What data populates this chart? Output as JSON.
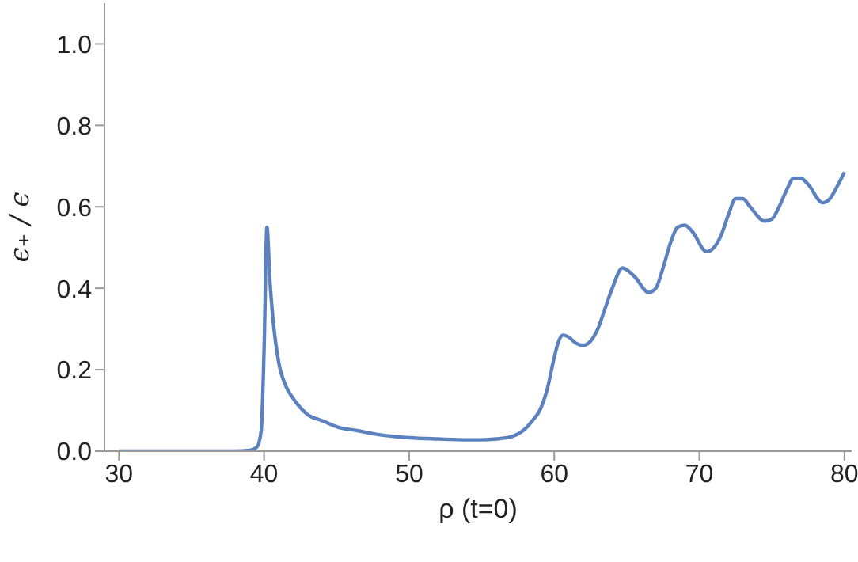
{
  "chart_data": {
    "type": "line",
    "xlabel": "ρ (t=0)",
    "ylabel": "ϵ₊ / ϵ",
    "xlim": [
      29,
      80.5
    ],
    "ylim": [
      0,
      1.1
    ],
    "xticks": [
      30,
      40,
      50,
      60,
      70,
      80
    ],
    "yticks": [
      {
        "value": 0,
        "label": "0.0"
      },
      0.2,
      0.4,
      0.6,
      0.8,
      {
        "value": 1,
        "label": "1.0"
      }
    ],
    "grid": false,
    "legend": false,
    "marker": "none",
    "line_style": "solid",
    "series": [
      {
        "color": "#5b81bf",
        "x": [
          30,
          32,
          34,
          36,
          38,
          39,
          39.5,
          39.8,
          40,
          40.2,
          40.4,
          40.6,
          41,
          41.5,
          42,
          43,
          44,
          45,
          46.5,
          48,
          50,
          52,
          54,
          55,
          56,
          57,
          58,
          58.5,
          59,
          59.5,
          60,
          60.3,
          60.6,
          61,
          61.5,
          62,
          62.5,
          63,
          63.5,
          64,
          64.7,
          65.5,
          66.5,
          67,
          67.5,
          68,
          68.5,
          69,
          69.5,
          70.5,
          71,
          71.5,
          72,
          72.5,
          73,
          73.5,
          74.5,
          75,
          75.5,
          76,
          76.5,
          77,
          77.5,
          78.5,
          79,
          79.5,
          80
        ],
        "values": [
          0,
          0,
          0,
          0,
          0,
          0.002,
          0.01,
          0.05,
          0.25,
          0.55,
          0.42,
          0.33,
          0.22,
          0.16,
          0.13,
          0.09,
          0.075,
          0.06,
          0.05,
          0.04,
          0.033,
          0.03,
          0.028,
          0.028,
          0.03,
          0.035,
          0.055,
          0.075,
          0.1,
          0.15,
          0.23,
          0.27,
          0.285,
          0.28,
          0.265,
          0.26,
          0.27,
          0.3,
          0.35,
          0.4,
          0.45,
          0.43,
          0.39,
          0.4,
          0.45,
          0.51,
          0.55,
          0.555,
          0.54,
          0.49,
          0.5,
          0.53,
          0.58,
          0.62,
          0.62,
          0.6,
          0.565,
          0.57,
          0.6,
          0.64,
          0.67,
          0.67,
          0.655,
          0.61,
          0.62,
          0.65,
          0.685
        ]
      }
    ]
  }
}
